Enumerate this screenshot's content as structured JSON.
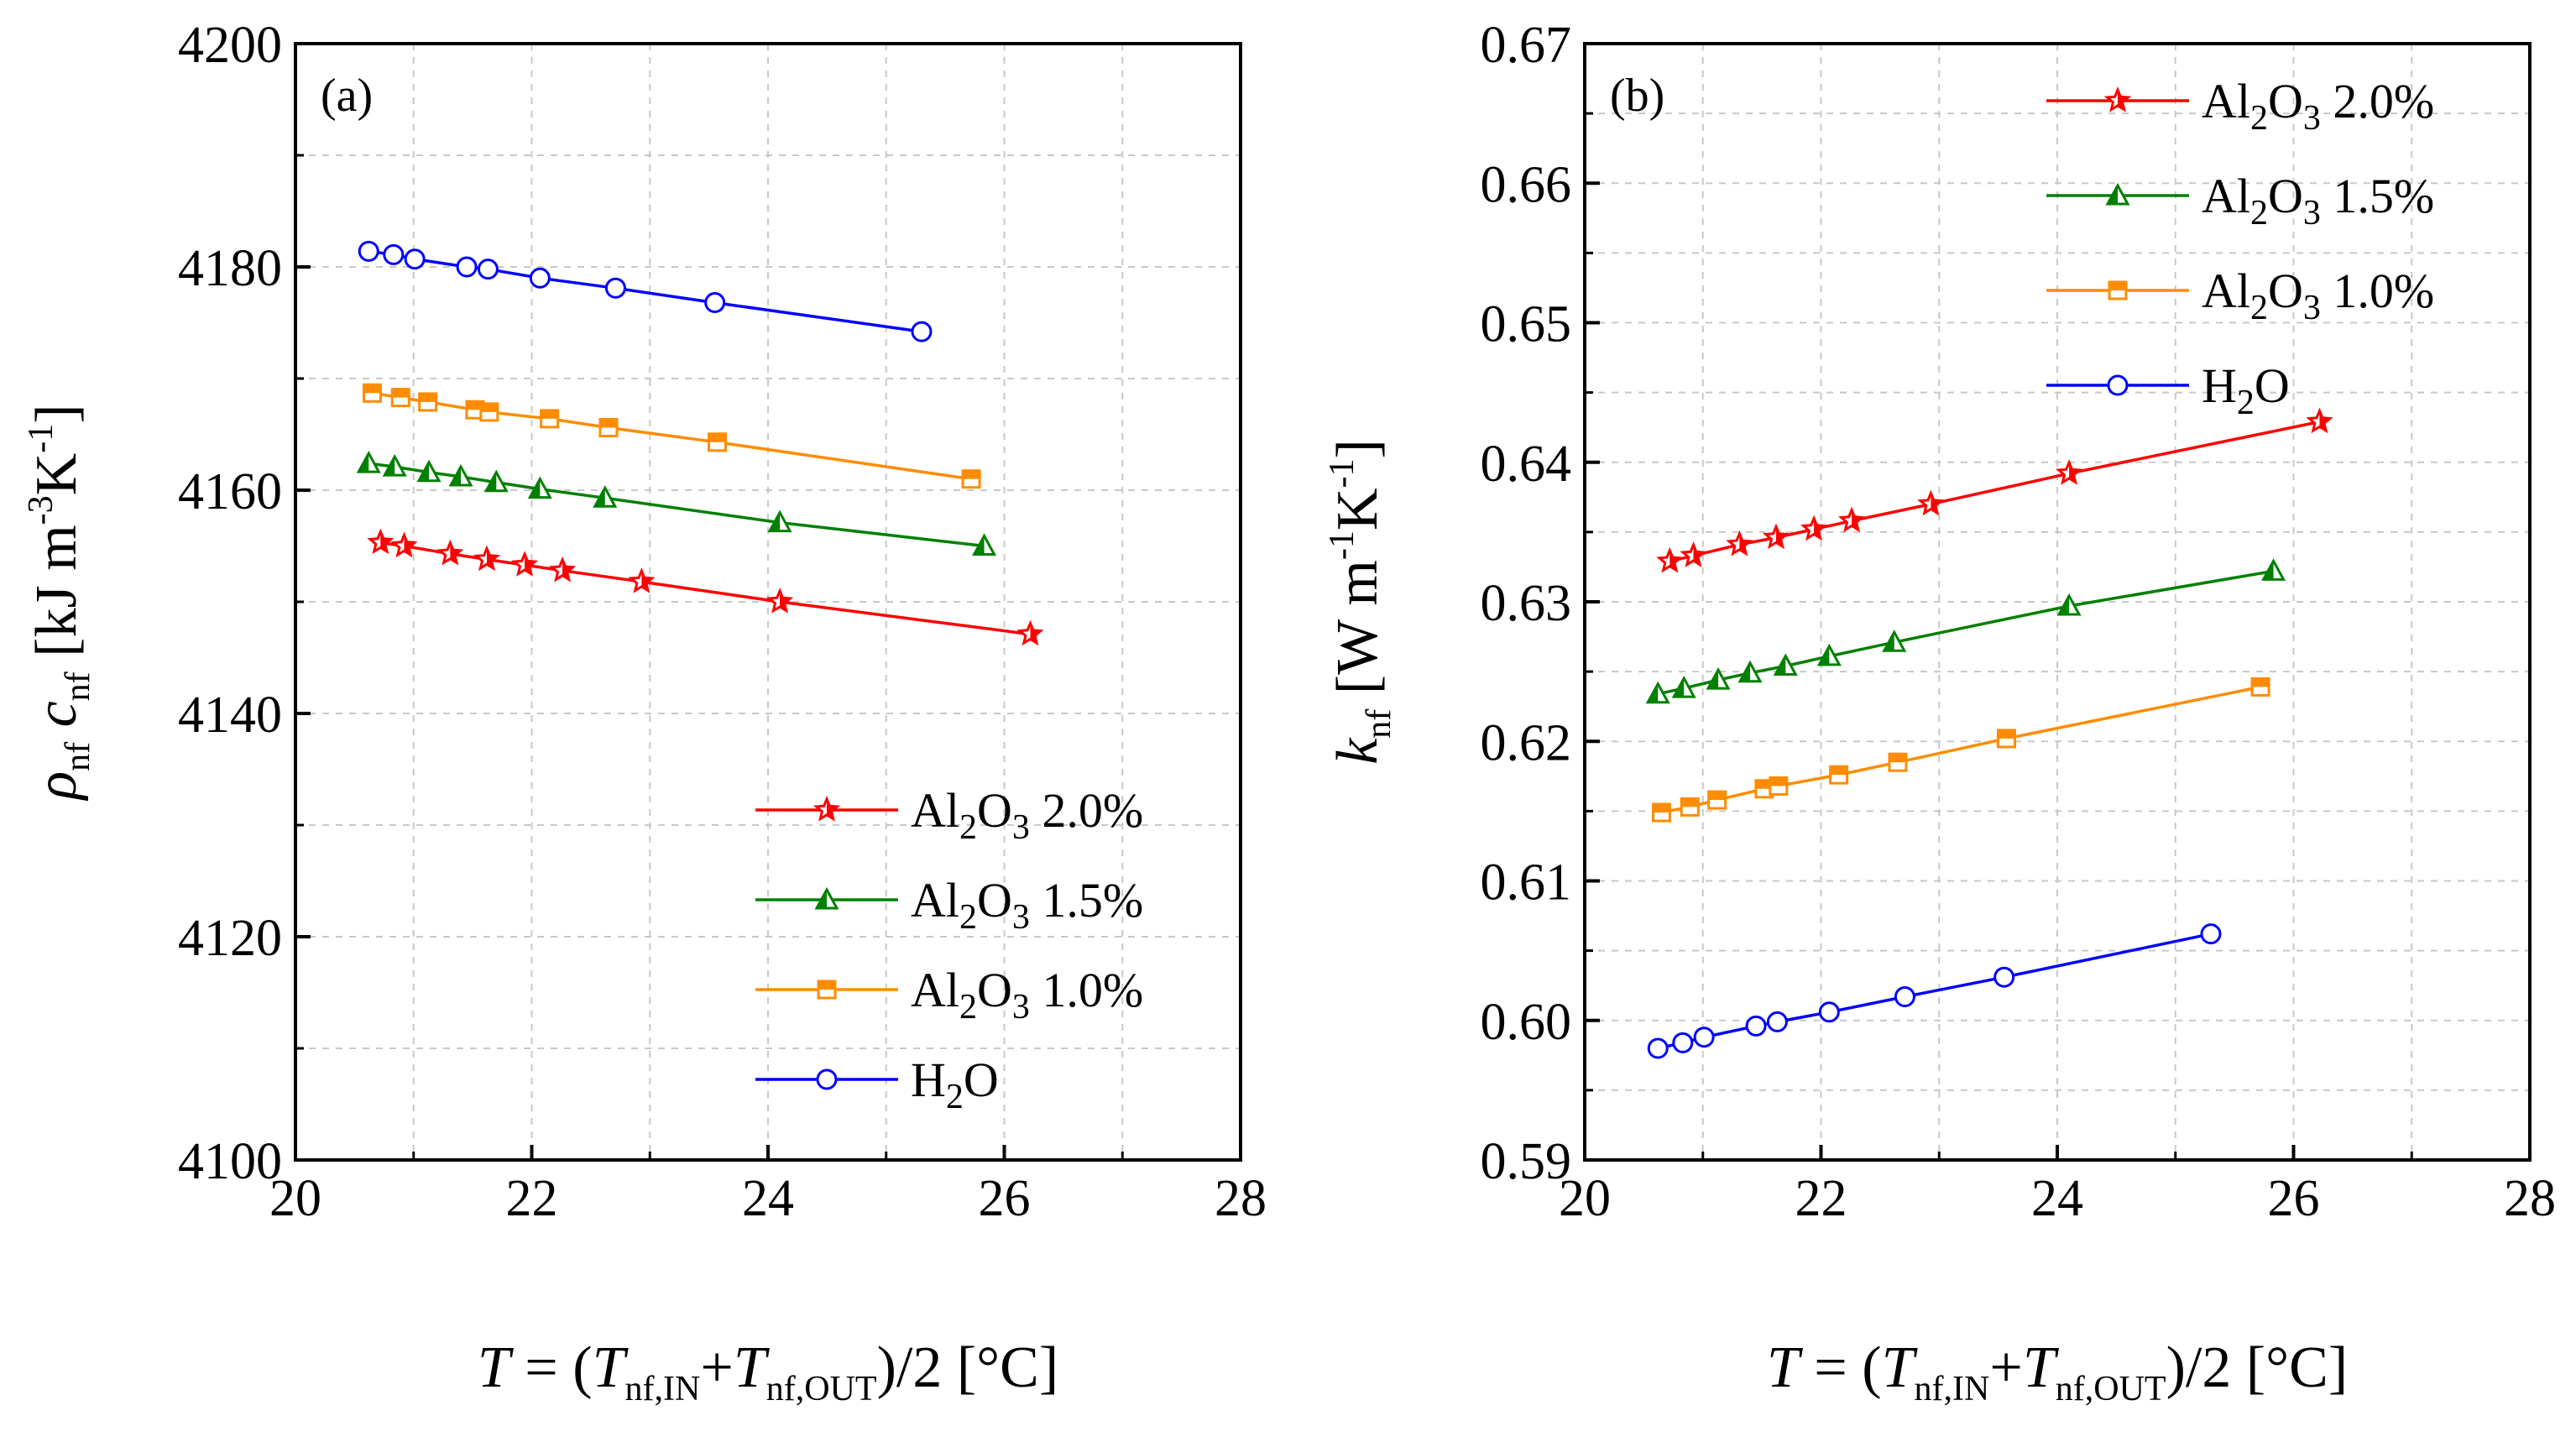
{
  "chart_data": [
    {
      "type": "line",
      "panel_label": "(a)",
      "xlabel": {
        "main": "T",
        "eq": " = (",
        "s1": "T",
        "s1sub": "nf,IN",
        "plus": "+",
        "s2": "T",
        "s2sub": "nf,OUT",
        "tail": ")/2 [°C]"
      },
      "ylabel": {
        "rho": "ρ",
        "rho_sub": "nf",
        "c": "c",
        "c_sub": "nf",
        "unit_a": "[kJ m",
        "unit_exp1": "-3",
        "unit_b": "K",
        "unit_exp2": "-1",
        "unit_c": "]"
      },
      "xlim": [
        20,
        28
      ],
      "ylim": [
        4100,
        4200
      ],
      "xticks": [
        "20",
        "22",
        "24",
        "26",
        "28"
      ],
      "yticks": [
        "4100",
        "4120",
        "4140",
        "4160",
        "4180",
        "4200"
      ],
      "grid": true,
      "legend_position": "bottom-right",
      "series": [
        {
          "name": "Al2O3 2.0%",
          "chem": "Al",
          "sub1": "2",
          "mid": "O",
          "sub2": "3",
          "pct": " 2.0%",
          "color": "#ff0000",
          "marker": "star",
          "x": [
            20.72,
            20.92,
            21.31,
            21.62,
            21.94,
            22.26,
            22.93,
            24.1,
            26.22
          ],
          "y": [
            4155.3,
            4155.0,
            4154.3,
            4153.8,
            4153.3,
            4152.8,
            4151.8,
            4150.0,
            4147.1
          ]
        },
        {
          "name": "Al2O3 1.5%",
          "chem": "Al",
          "sub1": "2",
          "mid": "O",
          "sub2": "3",
          "pct": " 1.5%",
          "color": "#008000",
          "marker": "triangle",
          "x": [
            20.62,
            20.84,
            21.13,
            21.4,
            21.7,
            22.07,
            22.62,
            24.1,
            25.83
          ],
          "y": [
            4162.4,
            4162.1,
            4161.6,
            4161.2,
            4160.7,
            4160.1,
            4159.3,
            4157.1,
            4155.0
          ]
        },
        {
          "name": "Al2O3 1.0%",
          "chem": "Al",
          "sub1": "2",
          "mid": "O",
          "sub2": "3",
          "pct": " 1.0%",
          "color": "#ff8c00",
          "marker": "square",
          "x": [
            20.65,
            20.89,
            21.12,
            21.52,
            21.64,
            22.15,
            22.65,
            23.57,
            25.72
          ],
          "y": [
            4168.7,
            4168.3,
            4167.9,
            4167.2,
            4167.0,
            4166.4,
            4165.6,
            4164.3,
            4161.0
          ]
        },
        {
          "name": "H2O",
          "chem": "H",
          "sub1": "2",
          "mid": "O",
          "sub2": "",
          "pct": "",
          "color": "#0000ff",
          "marker": "circle",
          "x": [
            20.62,
            20.83,
            21.01,
            21.45,
            21.63,
            22.07,
            22.71,
            23.55,
            25.3
          ],
          "y": [
            4181.4,
            4181.1,
            4180.7,
            4180.0,
            4179.8,
            4179.0,
            4178.1,
            4176.8,
            4174.2
          ]
        }
      ]
    },
    {
      "type": "line",
      "panel_label": "(b)",
      "xlabel": {
        "main": "T",
        "eq": " = (",
        "s1": "T",
        "s1sub": "nf,IN",
        "plus": "+",
        "s2": "T",
        "s2sub": "nf,OUT",
        "tail": ")/2 [°C]"
      },
      "ylabel": {
        "k": "k",
        "k_sub": "nf",
        "unit_a": "[W m",
        "unit_exp1": "-1",
        "unit_b": "K",
        "unit_exp2": "-1",
        "unit_c": "]"
      },
      "xlim": [
        20,
        28
      ],
      "ylim": [
        0.59,
        0.67
      ],
      "xticks": [
        "20",
        "22",
        "24",
        "26",
        "28"
      ],
      "yticks": [
        "0.59",
        "0.60",
        "0.61",
        "0.62",
        "0.63",
        "0.64",
        "0.65",
        "0.66",
        "0.67"
      ],
      "grid": true,
      "legend_position": "top-right",
      "series": [
        {
          "name": "Al2O3 2.0%",
          "chem": "Al",
          "sub1": "2",
          "mid": "O",
          "sub2": "3",
          "pct": " 2.0%",
          "color": "#ff0000",
          "marker": "star",
          "x": [
            20.72,
            20.92,
            21.31,
            21.62,
            21.94,
            22.26,
            22.93,
            24.1,
            26.22
          ],
          "y": [
            0.6329,
            0.6333,
            0.6341,
            0.6346,
            0.6352,
            0.6358,
            0.637,
            0.6392,
            0.6429
          ]
        },
        {
          "name": "Al2O3 1.5%",
          "chem": "Al",
          "sub1": "2",
          "mid": "O",
          "sub2": "3",
          "pct": " 1.5%",
          "color": "#008000",
          "marker": "triangle",
          "x": [
            20.62,
            20.84,
            21.13,
            21.4,
            21.7,
            22.07,
            22.62,
            24.1,
            25.83
          ],
          "y": [
            0.6234,
            0.6238,
            0.6244,
            0.6249,
            0.6254,
            0.6261,
            0.6271,
            0.6297,
            0.6322
          ]
        },
        {
          "name": "Al2O3 1.0%",
          "chem": "Al",
          "sub1": "2",
          "mid": "O",
          "sub2": "3",
          "pct": " 1.0%",
          "color": "#ff8c00",
          "marker": "square",
          "x": [
            20.65,
            20.89,
            21.12,
            21.52,
            21.64,
            22.15,
            22.65,
            23.57,
            25.72
          ],
          "y": [
            0.6149,
            0.6153,
            0.6158,
            0.6166,
            0.6168,
            0.6176,
            0.6185,
            0.6202,
            0.6239
          ]
        },
        {
          "name": "H2O",
          "chem": "H",
          "sub1": "2",
          "mid": "O",
          "sub2": "",
          "pct": "",
          "color": "#0000ff",
          "marker": "circle",
          "x": [
            20.62,
            20.83,
            21.01,
            21.45,
            21.63,
            22.07,
            22.71,
            23.55,
            25.3
          ],
          "y": [
            0.598,
            0.5984,
            0.5988,
            0.5996,
            0.5999,
            0.6006,
            0.6017,
            0.6031,
            0.6062
          ]
        }
      ]
    }
  ]
}
